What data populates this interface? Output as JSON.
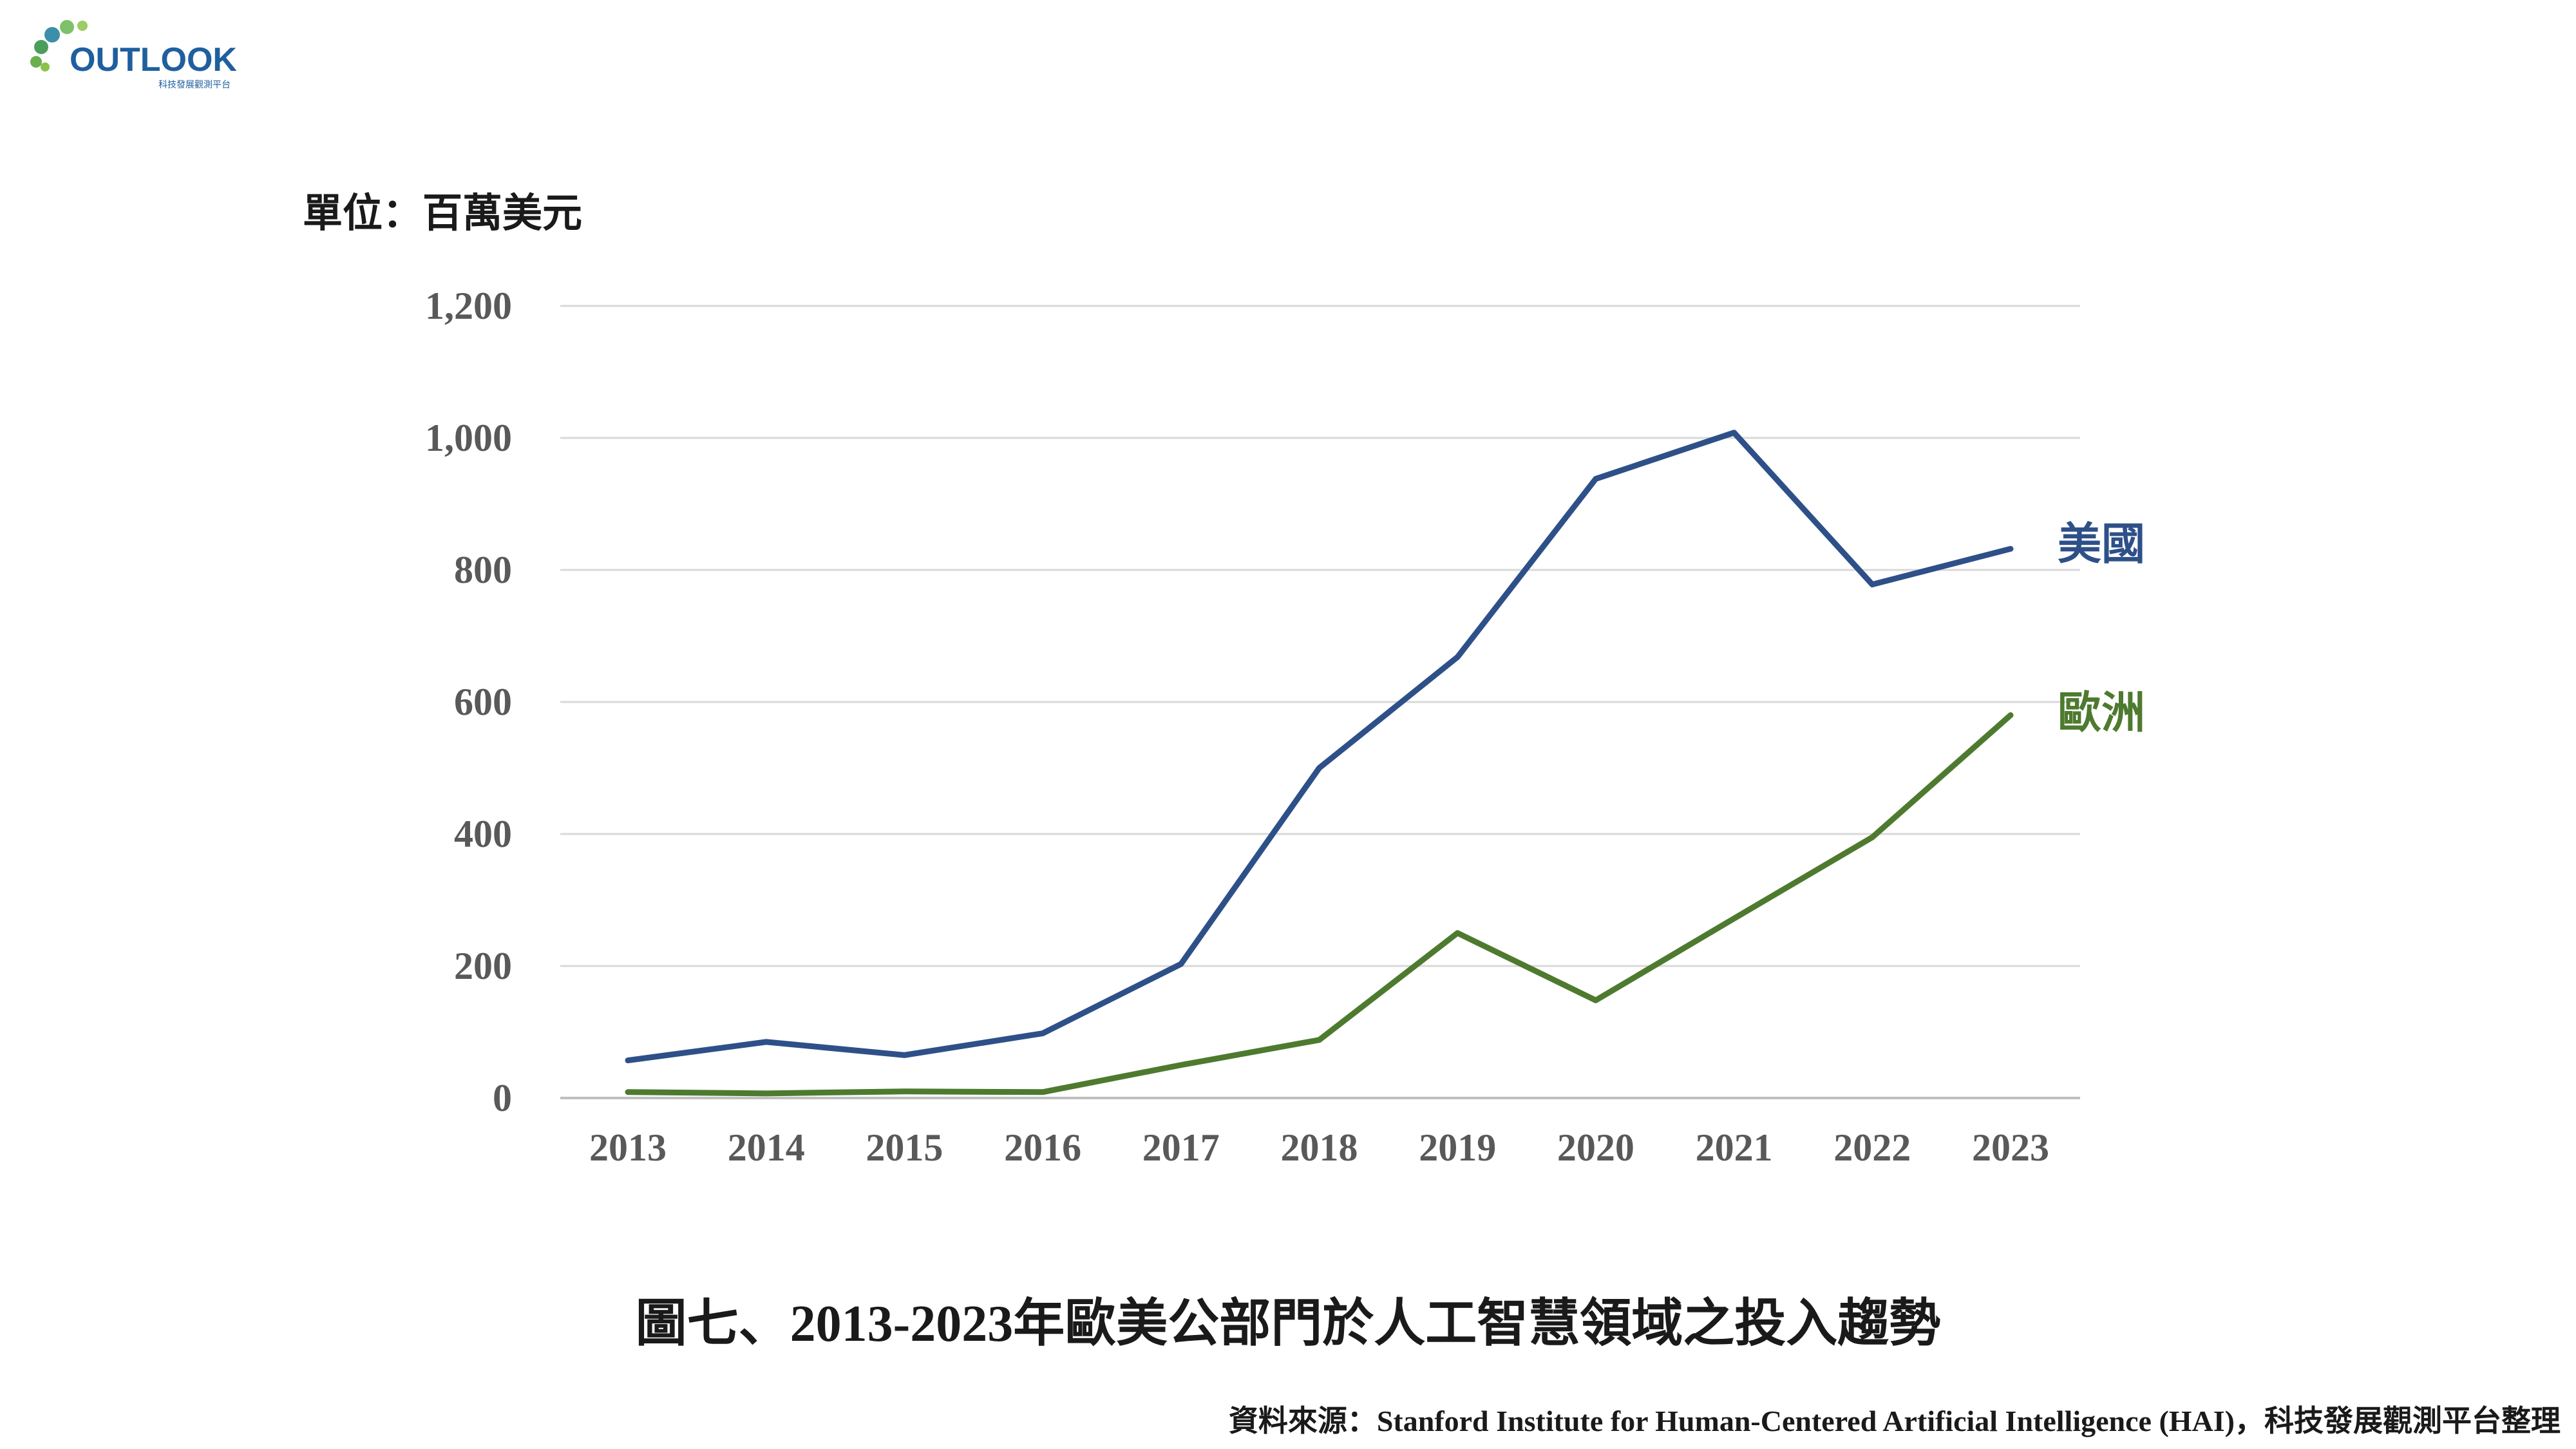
{
  "logo": {
    "brand": "OUTLOOK",
    "subtitle": "科技發展觀測平台"
  },
  "unit_label": "單位：百萬美元",
  "caption": "圖七、2013-2023年歐美公部門於人工智慧領域之投入趨勢",
  "source": "資料來源：Stanford Institute for Human-Centered Artificial Intelligence (HAI)，科技發展觀測平台整理",
  "colors": {
    "usa": "#2e5089",
    "europe": "#4e7a2f",
    "grid": "#d9d9d9",
    "tick": "#595959"
  },
  "chart_data": {
    "type": "line",
    "title": "",
    "xlabel": "",
    "ylabel": "",
    "categories": [
      "2013",
      "2014",
      "2015",
      "2016",
      "2017",
      "2018",
      "2019",
      "2020",
      "2021",
      "2022",
      "2023"
    ],
    "ylim": [
      0,
      1200
    ],
    "yticks": [
      0,
      200,
      400,
      600,
      800,
      1000,
      1200
    ],
    "ytick_labels": [
      "0",
      "200",
      "400",
      "600",
      "800",
      "1,000",
      "1,200"
    ],
    "grid": true,
    "legend": "direct labels at line ends",
    "series": [
      {
        "name": "美國",
        "color": "#2e5089",
        "values": [
          57,
          85,
          65,
          98,
          203,
          500,
          668,
          938,
          1008,
          778,
          832
        ]
      },
      {
        "name": "歐洲",
        "color": "#4e7a2f",
        "values": [
          9,
          7,
          10,
          9,
          50,
          88,
          250,
          148,
          272,
          395,
          580
        ]
      }
    ]
  }
}
